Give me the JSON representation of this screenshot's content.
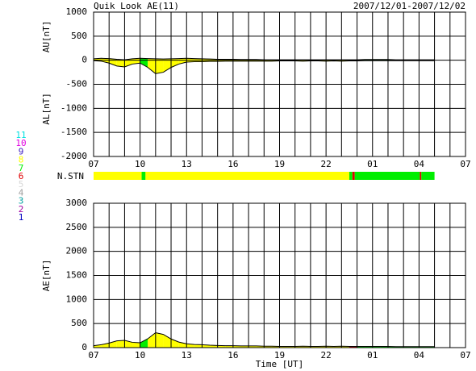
{
  "header": {
    "title": "Quik Look AE(11)",
    "period": "2007/12/01-2007/12/02"
  },
  "stations": [
    {
      "label": "11",
      "color": "#00e0e0"
    },
    {
      "label": "10",
      "color": "#e000e0"
    },
    {
      "label": "9",
      "color": "#4020c0"
    },
    {
      "label": "8",
      "color": "#ffff00"
    },
    {
      "label": "7",
      "color": "#00ee00"
    },
    {
      "label": "6",
      "color": "#e00000"
    },
    {
      "label": "5",
      "color": "#d8d8d8"
    },
    {
      "label": "4",
      "color": "#a0a0a0"
    },
    {
      "label": "3",
      "color": "#00a0a0"
    },
    {
      "label": "2",
      "color": "#a000a0"
    },
    {
      "label": "1",
      "color": "#0000c0"
    }
  ],
  "nstn": {
    "label": "N.STN",
    "segments": [
      {
        "start": 0,
        "end": 3.1,
        "n": 8
      },
      {
        "start": 3.1,
        "end": 3.35,
        "n": 7
      },
      {
        "start": 3.35,
        "end": 16.5,
        "n": 8
      },
      {
        "start": 16.5,
        "end": 16.7,
        "n": 7
      },
      {
        "start": 16.7,
        "end": 16.85,
        "n": 6
      },
      {
        "start": 16.85,
        "end": 21.05,
        "n": 7
      },
      {
        "start": 21.05,
        "end": 21.15,
        "n": 6
      },
      {
        "start": 21.15,
        "end": 22,
        "n": 7
      }
    ]
  },
  "chart_data": [
    {
      "type": "area",
      "ylabels": [
        "AU[nT]",
        "AL[nT]"
      ],
      "x": [
        0,
        0.5,
        1,
        1.5,
        2,
        2.5,
        3,
        3.5,
        4,
        4.5,
        5,
        5.5,
        6,
        6.5,
        7,
        7.5,
        8,
        8.5,
        9,
        9.5,
        10,
        10.5,
        11,
        11.5,
        12,
        12.5,
        13,
        13.5,
        14,
        14.5,
        15,
        15.5,
        16,
        16.5,
        17,
        17.5,
        18,
        18.5,
        19,
        19.5,
        20,
        20.5,
        21,
        21.5,
        22
      ],
      "series": [
        {
          "values": [
            30,
            40,
            35,
            20,
            10,
            30,
            40,
            35,
            30,
            25,
            30,
            35,
            40,
            35,
            30,
            25,
            20,
            20,
            20,
            15,
            15,
            15,
            10,
            10,
            10,
            10,
            10,
            10,
            10,
            10,
            10,
            10,
            10,
            10,
            10,
            15,
            15,
            15,
            15,
            10,
            10,
            10,
            10,
            10,
            10
          ]
        },
        {
          "values": [
            -10,
            -20,
            -60,
            -120,
            -140,
            -80,
            -60,
            -150,
            -280,
            -250,
            -150,
            -80,
            -40,
            -30,
            -30,
            -25,
            -25,
            -20,
            -20,
            -20,
            -20,
            -20,
            -20,
            -20,
            -15,
            -15,
            -15,
            -20,
            -15,
            -15,
            -20,
            -15,
            -20,
            -15,
            -15,
            -10,
            -10,
            -10,
            -10,
            -10,
            -10,
            -10,
            -10,
            -10,
            -10
          ]
        }
      ],
      "xlim": [
        0,
        24
      ],
      "xticks": [
        {
          "value": 0,
          "label": "07"
        },
        {
          "value": 3,
          "label": "10"
        },
        {
          "value": 6,
          "label": "13"
        },
        {
          "value": 9,
          "label": "16"
        },
        {
          "value": 12,
          "label": "19"
        },
        {
          "value": 15,
          "label": "22"
        },
        {
          "value": 18,
          "label": "01"
        },
        {
          "value": 21,
          "label": "04"
        },
        {
          "value": 24,
          "label": "07"
        }
      ],
      "xgrid": [
        0,
        1,
        2,
        3,
        4,
        5,
        6,
        7,
        8,
        9,
        10,
        11,
        12,
        13,
        14,
        15,
        16,
        17,
        18,
        19,
        20,
        21,
        22,
        23,
        24
      ],
      "ylim": [
        -2000,
        1000
      ],
      "yticks": [
        -2000,
        -1500,
        -1000,
        -500,
        0,
        500,
        1000
      ]
    },
    {
      "type": "area",
      "ylabels": [
        "AE[nT]"
      ],
      "xlabel": "Time [UT]",
      "x": [
        0,
        0.5,
        1,
        1.5,
        2,
        2.5,
        3,
        3.5,
        4,
        4.5,
        5,
        5.5,
        6,
        6.5,
        7,
        7.5,
        8,
        8.5,
        9,
        9.5,
        10,
        10.5,
        11,
        11.5,
        12,
        12.5,
        13,
        13.5,
        14,
        14.5,
        15,
        15.5,
        16,
        16.5,
        17,
        17.5,
        18,
        18.5,
        19,
        19.5,
        20,
        20.5,
        21,
        21.5,
        22
      ],
      "series": [
        {
          "values": [
            40,
            60,
            95,
            140,
            150,
            110,
            100,
            185,
            310,
            275,
            180,
            115,
            80,
            65,
            60,
            50,
            45,
            40,
            40,
            35,
            35,
            35,
            30,
            30,
            25,
            25,
            25,
            30,
            25,
            25,
            30,
            25,
            30,
            25,
            25,
            25,
            25,
            25,
            25,
            20,
            20,
            20,
            20,
            20,
            20
          ]
        }
      ],
      "xlim": [
        0,
        24
      ],
      "xticks": [
        {
          "value": 0,
          "label": "07"
        },
        {
          "value": 3,
          "label": "10"
        },
        {
          "value": 6,
          "label": "13"
        },
        {
          "value": 9,
          "label": "16"
        },
        {
          "value": 12,
          "label": "19"
        },
        {
          "value": 15,
          "label": "22"
        },
        {
          "value": 18,
          "label": "01"
        },
        {
          "value": 21,
          "label": "04"
        },
        {
          "value": 24,
          "label": "07"
        }
      ],
      "xgrid": [
        0,
        1,
        2,
        3,
        4,
        5,
        6,
        7,
        8,
        9,
        10,
        11,
        12,
        13,
        14,
        15,
        16,
        17,
        18,
        19,
        20,
        21,
        22,
        23,
        24
      ],
      "ylim": [
        0,
        3000
      ],
      "yticks": [
        0,
        500,
        1000,
        1500,
        2000,
        2500,
        3000
      ]
    }
  ]
}
